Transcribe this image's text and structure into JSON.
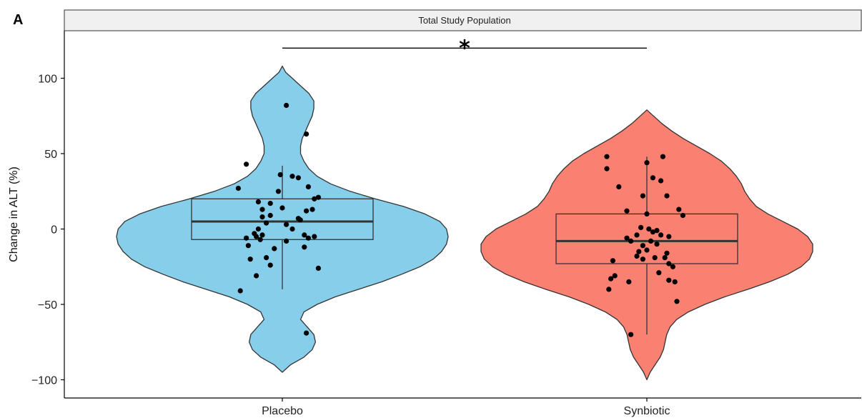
{
  "panel_label": "A",
  "chart_data": {
    "type": "violin",
    "facet_title": "Total Study Population",
    "xlabel": "",
    "ylabel": "Change in ALT (%)",
    "categories": [
      "Placebo",
      "Synbiotic"
    ],
    "ylim": [
      -105,
      125
    ],
    "yticks": [
      -100,
      -50,
      0,
      50,
      100
    ],
    "ytick_labels": [
      "−100",
      "−50",
      "0",
      "50",
      "100"
    ],
    "grid": false,
    "significance": {
      "label": "*",
      "between": [
        "Placebo",
        "Synbiotic"
      ],
      "y": 120
    },
    "series": [
      {
        "name": "Placebo",
        "color": "#87CEEB",
        "box": {
          "q1": -7,
          "median": 5,
          "q3": 20,
          "whisker_low": -40,
          "whisker_high": 42
        },
        "density": [
          [
            -95,
            0.0
          ],
          [
            -90,
            0.05
          ],
          [
            -85,
            0.13
          ],
          [
            -80,
            0.18
          ],
          [
            -75,
            0.2
          ],
          [
            -70,
            0.19
          ],
          [
            -65,
            0.15
          ],
          [
            -60,
            0.11
          ],
          [
            -55,
            0.13
          ],
          [
            -50,
            0.21
          ],
          [
            -45,
            0.32
          ],
          [
            -40,
            0.46
          ],
          [
            -35,
            0.6
          ],
          [
            -30,
            0.72
          ],
          [
            -25,
            0.83
          ],
          [
            -20,
            0.91
          ],
          [
            -15,
            0.96
          ],
          [
            -10,
            0.99
          ],
          [
            -5,
            1.0
          ],
          [
            0,
            0.99
          ],
          [
            5,
            0.95
          ],
          [
            10,
            0.86
          ],
          [
            15,
            0.73
          ],
          [
            20,
            0.56
          ],
          [
            25,
            0.41
          ],
          [
            30,
            0.29
          ],
          [
            35,
            0.21
          ],
          [
            40,
            0.16
          ],
          [
            45,
            0.13
          ],
          [
            50,
            0.11
          ],
          [
            55,
            0.11
          ],
          [
            60,
            0.12
          ],
          [
            65,
            0.14
          ],
          [
            70,
            0.16
          ],
          [
            75,
            0.18
          ],
          [
            80,
            0.19
          ],
          [
            85,
            0.19
          ],
          [
            90,
            0.16
          ],
          [
            95,
            0.11
          ],
          [
            100,
            0.06
          ],
          [
            104,
            0.02
          ],
          [
            108,
            0.0
          ]
        ],
        "points": [
          [
            0.02,
            82
          ],
          [
            0.12,
            63
          ],
          [
            -0.18,
            43
          ],
          [
            0.13,
            28
          ],
          [
            -0.22,
            27
          ],
          [
            -0.01,
            36
          ],
          [
            0.05,
            35
          ],
          [
            0.08,
            34
          ],
          [
            0.18,
            21
          ],
          [
            0.16,
            20
          ],
          [
            -0.12,
            18
          ],
          [
            -0.06,
            17
          ],
          [
            0.15,
            13
          ],
          [
            0.12,
            12
          ],
          [
            -0.1,
            13
          ],
          [
            0.0,
            14
          ],
          [
            -0.1,
            8
          ],
          [
            -0.02,
            25
          ],
          [
            -0.06,
            9
          ],
          [
            0.09,
            6
          ],
          [
            0.08,
            7
          ],
          [
            -0.08,
            4
          ],
          [
            0.02,
            3
          ],
          [
            -0.12,
            0
          ],
          [
            -0.14,
            -3
          ],
          [
            -0.1,
            -4
          ],
          [
            -0.13,
            -5
          ],
          [
            0.11,
            -4
          ],
          [
            0.13,
            -6
          ],
          [
            0.16,
            -5
          ],
          [
            -0.18,
            -6
          ],
          [
            -0.11,
            -7
          ],
          [
            0.02,
            -8
          ],
          [
            0.05,
            0
          ],
          [
            -0.17,
            -11
          ],
          [
            0.11,
            -12
          ],
          [
            -0.04,
            -13
          ],
          [
            -0.16,
            -20
          ],
          [
            -0.08,
            -19
          ],
          [
            0.18,
            -26
          ],
          [
            -0.06,
            -24
          ],
          [
            -0.13,
            -31
          ],
          [
            -0.21,
            -41
          ],
          [
            0.12,
            -69
          ]
        ]
      },
      {
        "name": "Synbiotic",
        "color": "#FA8072",
        "box": {
          "q1": -23,
          "median": -8,
          "q3": 10,
          "whisker_low": -70,
          "whisker_high": 48
        },
        "density": [
          [
            -100,
            0.0
          ],
          [
            -95,
            0.02
          ],
          [
            -90,
            0.05
          ],
          [
            -85,
            0.08
          ],
          [
            -80,
            0.1
          ],
          [
            -75,
            0.11
          ],
          [
            -70,
            0.12
          ],
          [
            -65,
            0.14
          ],
          [
            -60,
            0.18
          ],
          [
            -55,
            0.25
          ],
          [
            -50,
            0.35
          ],
          [
            -45,
            0.47
          ],
          [
            -40,
            0.61
          ],
          [
            -35,
            0.74
          ],
          [
            -30,
            0.85
          ],
          [
            -25,
            0.93
          ],
          [
            -20,
            0.98
          ],
          [
            -15,
            1.0
          ],
          [
            -10,
            1.0
          ],
          [
            -5,
            0.97
          ],
          [
            0,
            0.91
          ],
          [
            5,
            0.82
          ],
          [
            10,
            0.73
          ],
          [
            15,
            0.66
          ],
          [
            20,
            0.62
          ],
          [
            25,
            0.59
          ],
          [
            30,
            0.57
          ],
          [
            35,
            0.54
          ],
          [
            40,
            0.5
          ],
          [
            45,
            0.45
          ],
          [
            50,
            0.38
          ],
          [
            55,
            0.3
          ],
          [
            60,
            0.22
          ],
          [
            65,
            0.15
          ],
          [
            70,
            0.09
          ],
          [
            75,
            0.04
          ],
          [
            79,
            0.0
          ]
        ],
        "points": [
          [
            -0.2,
            48
          ],
          [
            0.08,
            48
          ],
          [
            0.0,
            44
          ],
          [
            -0.2,
            40
          ],
          [
            0.03,
            34
          ],
          [
            0.07,
            32
          ],
          [
            0.1,
            22
          ],
          [
            -0.14,
            28
          ],
          [
            -0.02,
            22
          ],
          [
            0.16,
            13
          ],
          [
            -0.1,
            12
          ],
          [
            0.18,
            9
          ],
          [
            0.0,
            10
          ],
          [
            -0.03,
            1
          ],
          [
            0.01,
            0
          ],
          [
            0.05,
            -1
          ],
          [
            0.03,
            -2
          ],
          [
            0.07,
            -4
          ],
          [
            0.11,
            -5
          ],
          [
            -0.05,
            -4
          ],
          [
            -0.1,
            -6
          ],
          [
            -0.08,
            -8
          ],
          [
            0.02,
            -8
          ],
          [
            0.05,
            -10
          ],
          [
            -0.02,
            -11
          ],
          [
            0.0,
            -14
          ],
          [
            -0.04,
            -15
          ],
          [
            0.1,
            -16
          ],
          [
            -0.05,
            -18
          ],
          [
            0.04,
            -19
          ],
          [
            -0.02,
            -20
          ],
          [
            0.09,
            -19
          ],
          [
            -0.17,
            -21
          ],
          [
            0.11,
            -23
          ],
          [
            0.13,
            -25
          ],
          [
            0.06,
            -29
          ],
          [
            -0.16,
            -31
          ],
          [
            -0.18,
            -33
          ],
          [
            -0.09,
            -35
          ],
          [
            0.11,
            -34
          ],
          [
            0.14,
            -35
          ],
          [
            -0.19,
            -40
          ],
          [
            0.15,
            -48
          ],
          [
            -0.08,
            -70
          ]
        ]
      }
    ]
  }
}
